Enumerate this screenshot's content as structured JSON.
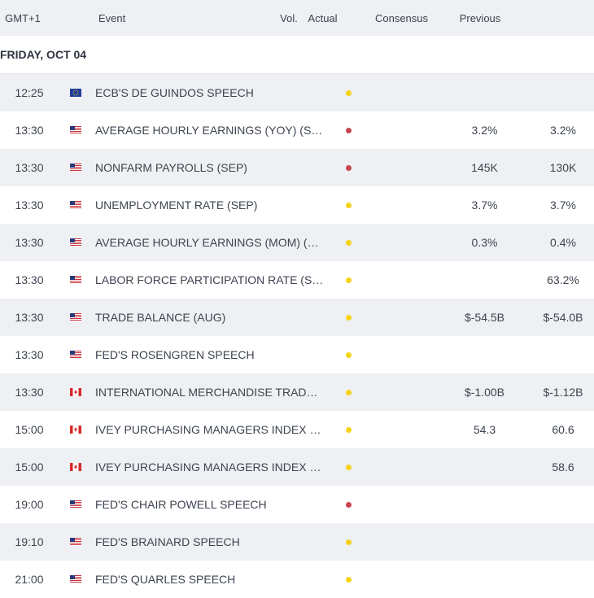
{
  "header": {
    "timezone": "GMT+1",
    "event": "Event",
    "volatility": "Vol.",
    "actual": "Actual",
    "consensus": "Consensus",
    "previous": "Previous"
  },
  "date_label": "FRIDAY, OCT 04",
  "colors": {
    "vol_medium": "#f5d316",
    "vol_high": "#c8454d",
    "row_alt": "#eef0f3"
  },
  "events": [
    {
      "time": "12:25",
      "flag": "eu-flag-icon",
      "event": "ECB'S DE GUINDOS SPEECH",
      "vol": "medium",
      "actual": "",
      "consensus": "",
      "previous": ""
    },
    {
      "time": "13:30",
      "flag": "us-flag-icon",
      "event": "AVERAGE HOURLY EARNINGS (YOY) (SEP)",
      "vol": "high",
      "actual": "",
      "consensus": "3.2%",
      "previous": "3.2%"
    },
    {
      "time": "13:30",
      "flag": "us-flag-icon",
      "event": "NONFARM PAYROLLS (SEP)",
      "vol": "high",
      "actual": "",
      "consensus": "145K",
      "previous": "130K"
    },
    {
      "time": "13:30",
      "flag": "us-flag-icon",
      "event": "UNEMPLOYMENT RATE (SEP)",
      "vol": "medium",
      "actual": "",
      "consensus": "3.7%",
      "previous": "3.7%"
    },
    {
      "time": "13:30",
      "flag": "us-flag-icon",
      "event": "AVERAGE HOURLY EARNINGS (MOM) (SEP)",
      "vol": "medium",
      "actual": "",
      "consensus": "0.3%",
      "previous": "0.4%"
    },
    {
      "time": "13:30",
      "flag": "us-flag-icon",
      "event": "LABOR FORCE PARTICIPATION RATE (SEP)",
      "vol": "medium",
      "actual": "",
      "consensus": "",
      "previous": "63.2%"
    },
    {
      "time": "13:30",
      "flag": "us-flag-icon",
      "event": "TRADE BALANCE (AUG)",
      "vol": "medium",
      "actual": "",
      "consensus": "$-54.5B",
      "previous": "$-54.0B"
    },
    {
      "time": "13:30",
      "flag": "us-flag-icon",
      "event": "FED'S ROSENGREN SPEECH",
      "vol": "medium",
      "actual": "",
      "consensus": "",
      "previous": ""
    },
    {
      "time": "13:30",
      "flag": "ca-flag-icon",
      "event": "INTERNATIONAL MERCHANDISE TRADE (...",
      "vol": "medium",
      "actual": "",
      "consensus": "$-1.00B",
      "previous": "$-1.12B"
    },
    {
      "time": "15:00",
      "flag": "ca-flag-icon",
      "event": "IVEY PURCHASING MANAGERS INDEX S.A...",
      "vol": "medium",
      "actual": "",
      "consensus": "54.3",
      "previous": "60.6"
    },
    {
      "time": "15:00",
      "flag": "ca-flag-icon",
      "event": "IVEY PURCHASING MANAGERS INDEX (SE...",
      "vol": "medium",
      "actual": "",
      "consensus": "",
      "previous": "58.6"
    },
    {
      "time": "19:00",
      "flag": "us-flag-icon",
      "event": "FED'S CHAIR POWELL SPEECH",
      "vol": "high",
      "actual": "",
      "consensus": "",
      "previous": ""
    },
    {
      "time": "19:10",
      "flag": "us-flag-icon",
      "event": "FED'S BRAINARD SPEECH",
      "vol": "medium",
      "actual": "",
      "consensus": "",
      "previous": ""
    },
    {
      "time": "21:00",
      "flag": "us-flag-icon",
      "event": "FED'S QUARLES SPEECH",
      "vol": "medium",
      "actual": "",
      "consensus": "",
      "previous": ""
    }
  ]
}
